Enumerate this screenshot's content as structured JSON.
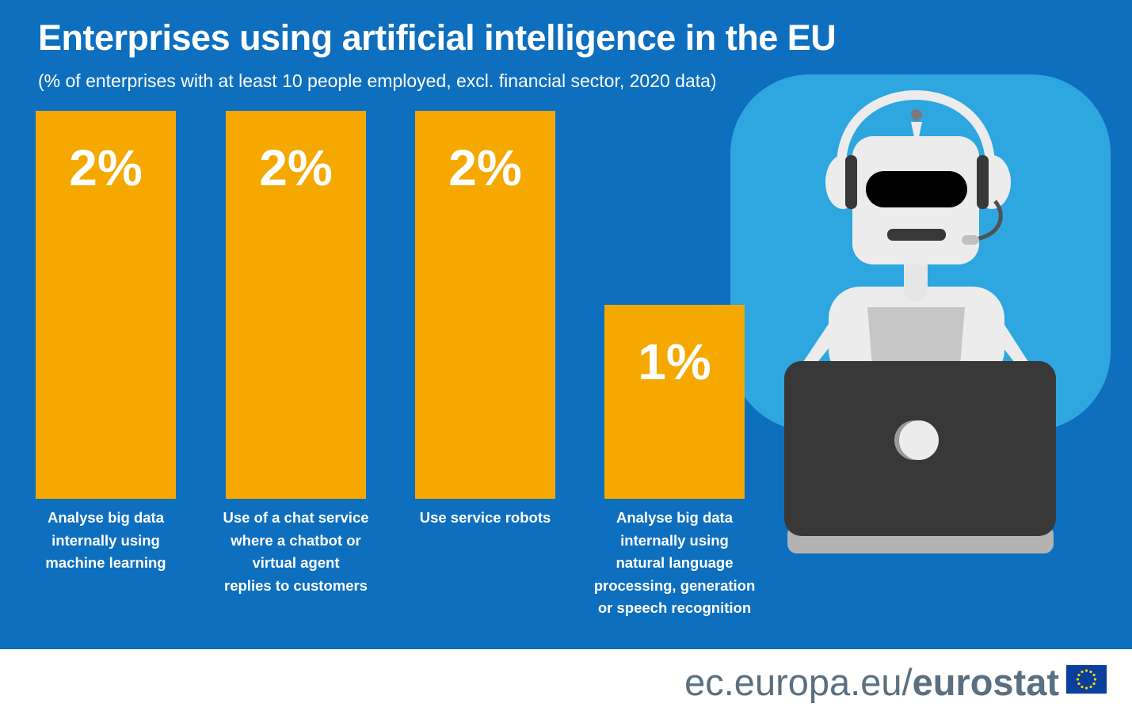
{
  "header": {
    "title": "Enterprises using artificial intelligence in the EU",
    "subtitle": "(% of enterprises with at least 10 people employed, excl. financial sector, 2020 data)"
  },
  "chart_data": {
    "type": "bar",
    "title": "Enterprises using artificial intelligence in the EU",
    "subtitle": "(% of enterprises with at least 10 people employed, excl. financial sector, 2020 data)",
    "categories": [
      [
        "Analyse big data",
        "internally using",
        "machine learning"
      ],
      [
        "Use of a chat service",
        "where  a chatbot or",
        "virtual agent",
        "replies to customers"
      ],
      [
        "Use service robots"
      ],
      [
        "Analyse big data",
        "internally using",
        "natural language",
        "processing, generation",
        "or speech recognition"
      ]
    ],
    "values": [
      2,
      2,
      2,
      1
    ],
    "value_labels": [
      "2%",
      "2%",
      "2%",
      "1%"
    ],
    "ylim": [
      0,
      2
    ],
    "grid": false,
    "legend": "none"
  },
  "colors": {
    "background": "#0e6fbf",
    "bar": "#f5a800",
    "text": "#ffffff",
    "footer_text": "#5a6f80",
    "illustration_bg": "#2ea6e0",
    "flag": "#0a3f9c",
    "flag_stars": "#ffd500"
  },
  "illustration": {
    "icon": "robot-with-laptop-icon"
  },
  "footer": {
    "domain": "ec.europa.eu/",
    "brand": "eurostat",
    "flag_icon": "eu-flag-icon"
  }
}
